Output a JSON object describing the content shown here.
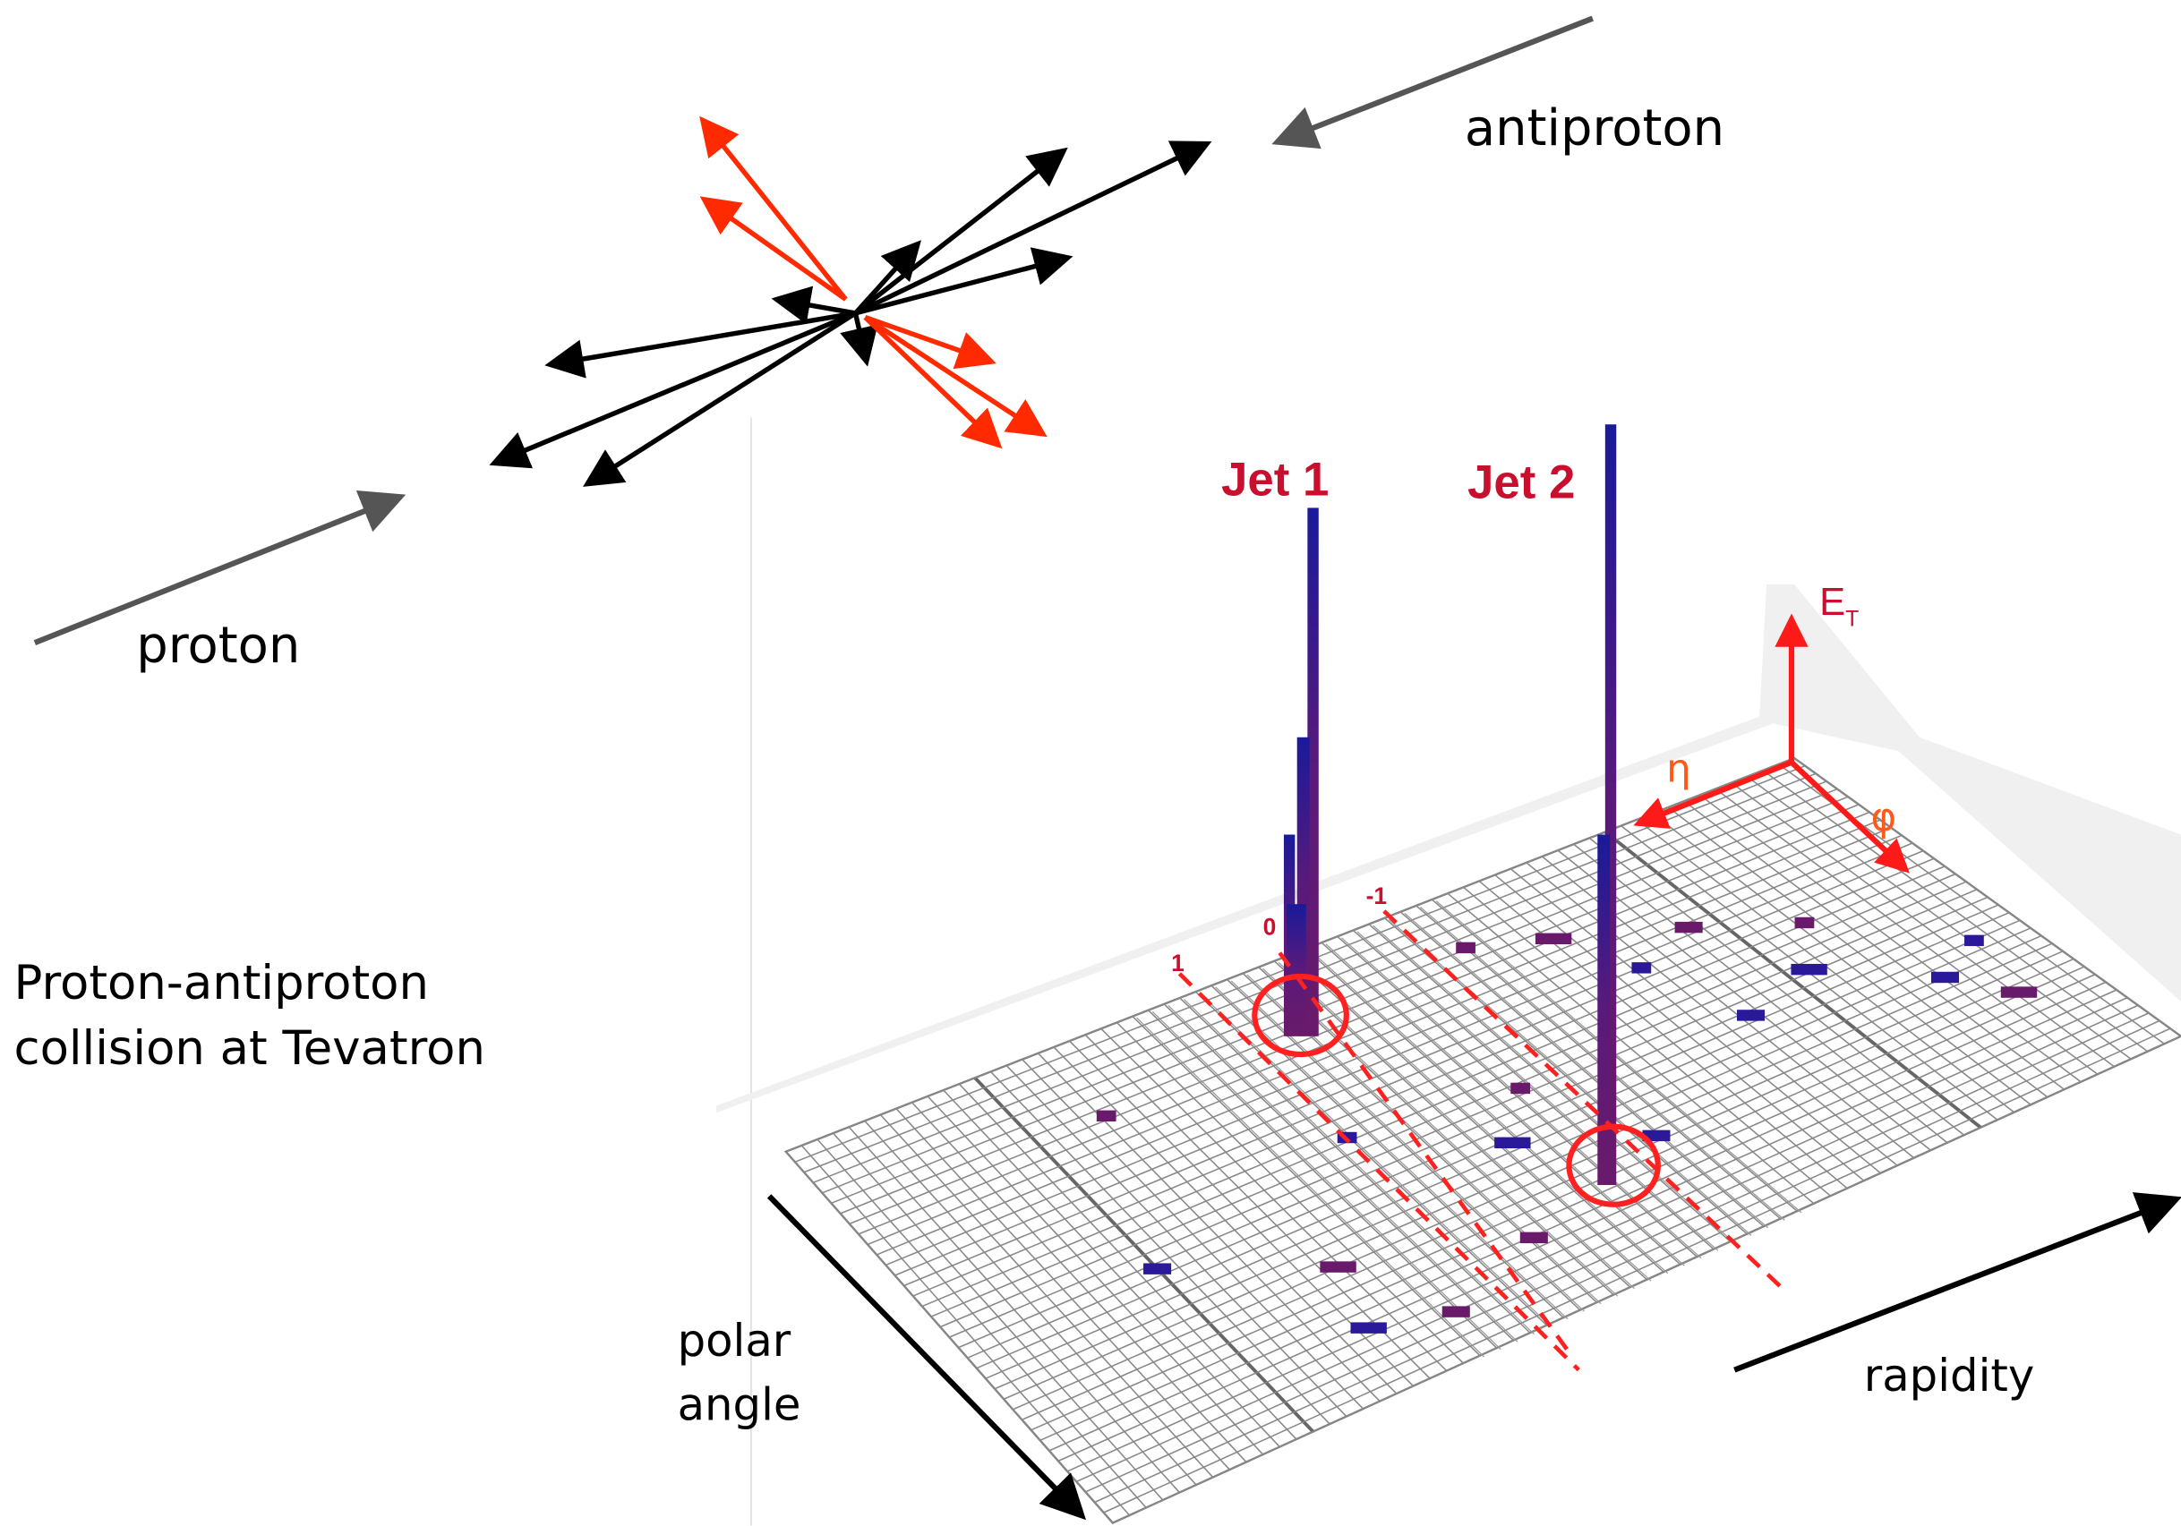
{
  "event_diagram": {
    "antiproton_label": "antiproton",
    "proton_label": "proton",
    "caption": [
      "Proton-antiproton",
      "collision at Tevatron"
    ]
  },
  "lego_plot": {
    "jets": [
      "Jet 1",
      "Jet 2"
    ],
    "axis_energy": {
      "symbol": "E",
      "subscript": "T"
    },
    "axis_eta": "η",
    "axis_phi": "φ",
    "eta_markers": [
      "1",
      "0",
      "-1"
    ],
    "polar_angle_label": [
      "polar",
      "angle"
    ],
    "rapidity_label": "rapidity"
  }
}
